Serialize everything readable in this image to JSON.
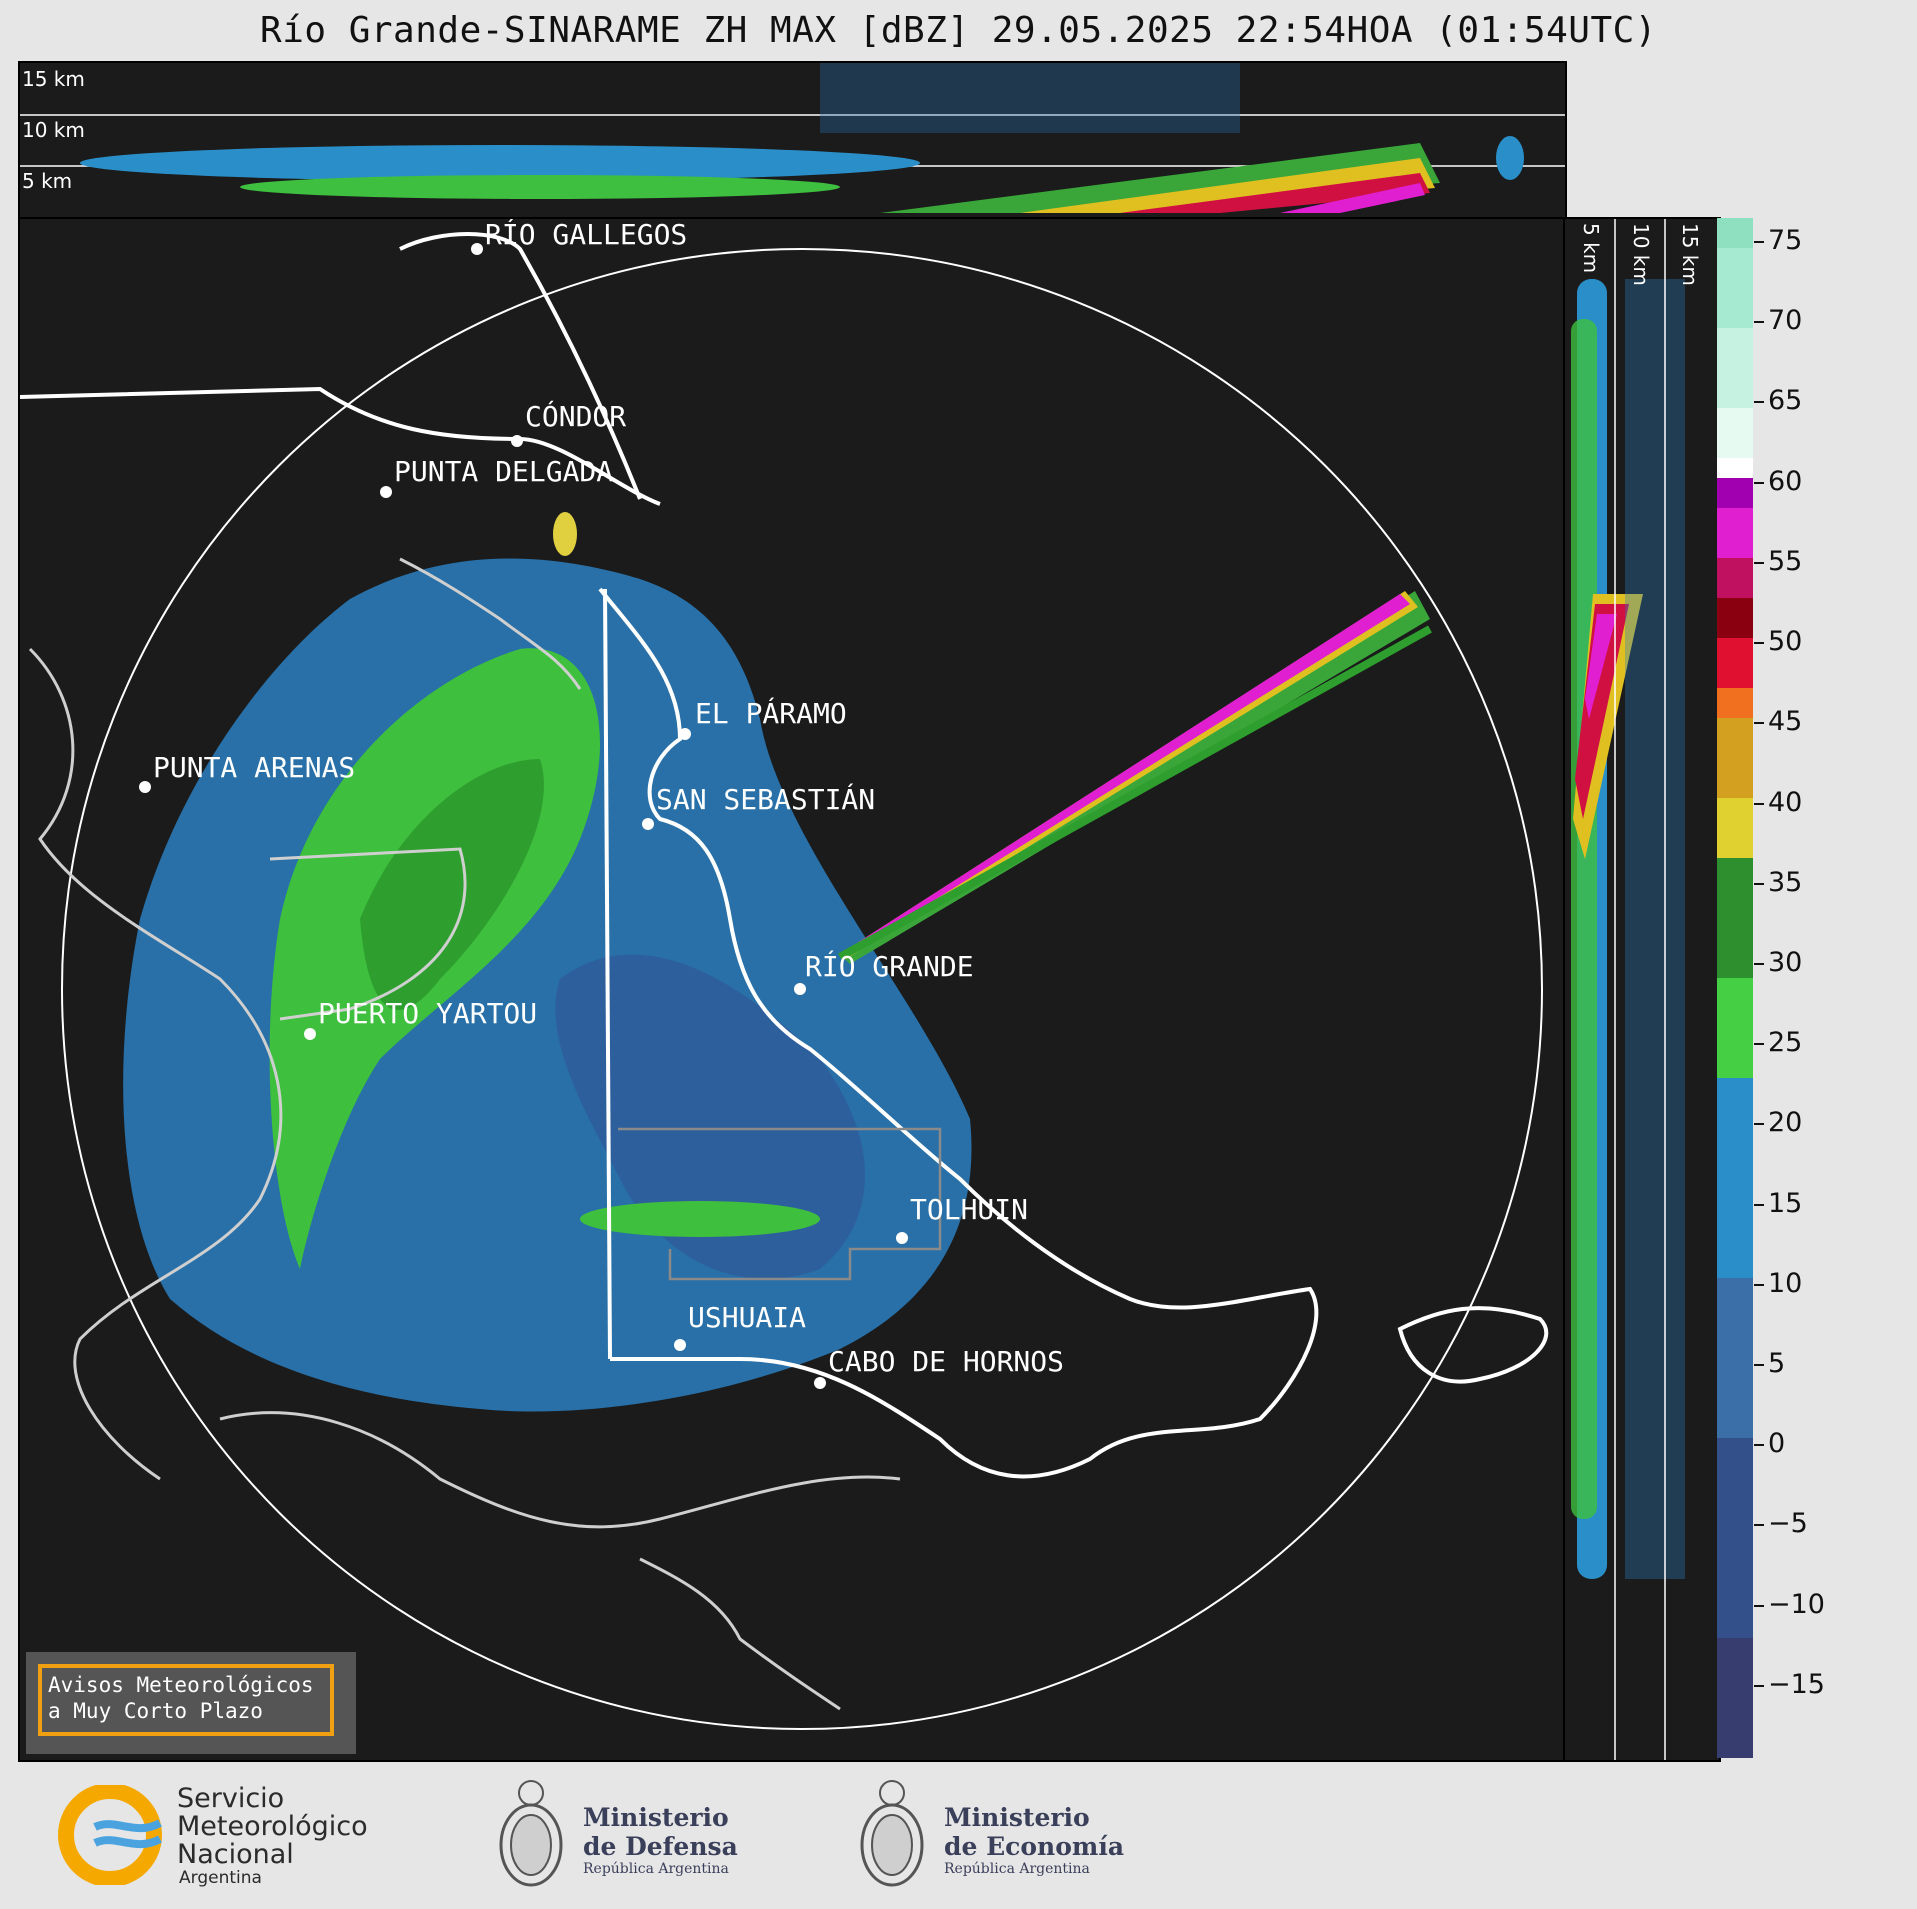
{
  "title": "Río Grande-SINARAME ZH MAX [dBZ] 29.05.2025 22:54HOA (01:54UTC)",
  "altitude_labels": {
    "km15": "15 km",
    "km10": "10 km",
    "km5": "5 km"
  },
  "cities": [
    {
      "name": "RÍO GALLEGOS"
    },
    {
      "name": "CÓNDOR"
    },
    {
      "name": "PUNTA DELGADA"
    },
    {
      "name": "EL PÁRAMO"
    },
    {
      "name": "PUNTA ARENAS"
    },
    {
      "name": "SAN SEBASTIÁN"
    },
    {
      "name": "RÍO GRANDE"
    },
    {
      "name": "PUERTO YARTOU"
    },
    {
      "name": "TOLHUIN"
    },
    {
      "name": "USHUAIA"
    },
    {
      "name": "CABO DE HORNOS"
    }
  ],
  "colorbar": {
    "unit": "dBZ",
    "ticks": [
      "75",
      "70",
      "65",
      "60",
      "55",
      "50",
      "45",
      "40",
      "35",
      "30",
      "25",
      "20",
      "15",
      "10",
      "5",
      "0",
      "−5",
      "−10",
      "−15"
    ],
    "range": [
      -19.5,
      76.5
    ]
  },
  "notice": {
    "line1": "Avisos Meteorológicos",
    "line2": "a Muy Corto Plazo"
  },
  "logos": {
    "smn": {
      "line1": "Servicio",
      "line2": "Meteorológico",
      "line3": "Nacional",
      "line4": "Argentina"
    },
    "defensa": {
      "line1": "Ministerio",
      "line2": "de Defensa",
      "line3": "República Argentina"
    },
    "economia": {
      "line1": "Ministerio",
      "line2": "de Economía",
      "line3": "República Argentina"
    }
  },
  "colors": {
    "background": "#e6e6e6",
    "panel": "#1b1b1b",
    "accent": "#f0a010"
  }
}
